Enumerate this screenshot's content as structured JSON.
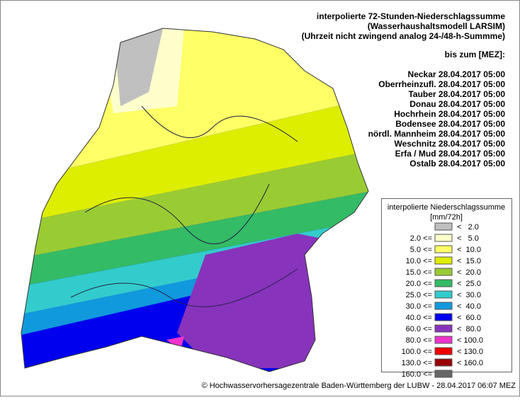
{
  "header": {
    "lines": [
      "interpolierte 72-Stunden-Niederschlagssumme",
      "(Wasserhaushaltsmodell LARSIM)",
      "(Uhrzeit nicht zwingend analog 24-/48-h-Summme)"
    ],
    "until": "bis zum [MEZ]:"
  },
  "stations": [
    "Neckar 28.04.2017 05:00",
    "Oberrheinzufl. 28.04.2017 05:00",
    "Tauber 28.04.2017 05:00",
    "Donau 28.04.2017 05:00",
    "Hochrhein 28.04.2017 05:00",
    "Bodensee 28.04.2017 05:00",
    "nördl. Mannheim 28.04.2017 05:00",
    "Weschnitz 28.04.2017 05:00",
    "Erfa / Mud 28.04.2017 05:00",
    "Ostalb 28.04.2017 05:00"
  ],
  "legend": {
    "title": "interpolierte Niederschlagssumme",
    "unit": "[mm/72h]",
    "items": [
      {
        "upper": "<   2.0",
        "color": "#c0c0c0"
      },
      {
        "lower": "2.0 <=",
        "upper": "<   5.0",
        "color": "#ffffcc"
      },
      {
        "lower": "5.0 <=",
        "upper": "<  10.0",
        "color": "#ffff66"
      },
      {
        "lower": "10.0 <=",
        "upper": "<  15.0",
        "color": "#ddee00"
      },
      {
        "lower": "15.0 <=",
        "upper": "<  20.0",
        "color": "#99cc33"
      },
      {
        "lower": "20.0 <=",
        "upper": "<  25.0",
        "color": "#33bb66"
      },
      {
        "lower": "25.0 <=",
        "upper": "<  30.0",
        "color": "#33cccc"
      },
      {
        "lower": "30.0 <=",
        "upper": "<  40.0",
        "color": "#1199dd"
      },
      {
        "lower": "40.0 <=",
        "upper": "<  60.0",
        "color": "#0000ee"
      },
      {
        "lower": "60.0 <=",
        "upper": "<  80.0",
        "color": "#8833bb"
      },
      {
        "lower": "80.0 <=",
        "upper": "< 100.0",
        "color": "#ee33cc"
      },
      {
        "lower": "100.0 <=",
        "upper": "< 130.0",
        "color": "#ee0000"
      },
      {
        "lower": "130.0 <=",
        "upper": "< 160.0",
        "color": "#990000"
      },
      {
        "lower": "160.0 <=",
        "color": "#666666"
      }
    ]
  },
  "footer": "© Hochwasservorhersagezentrale Baden-Württemberg der LUBW - 28.04.2017 06:07 MEZ"
}
